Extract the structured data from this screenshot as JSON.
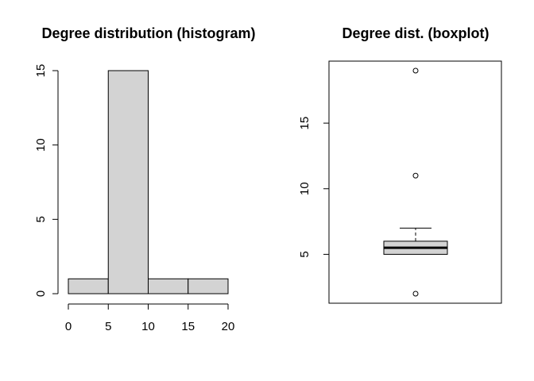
{
  "chart_data": [
    {
      "type": "bar",
      "title": "Degree distribution (histogram)",
      "xlabel": "",
      "ylabel": "",
      "bins": [
        [
          0,
          5
        ],
        [
          5,
          10
        ],
        [
          10,
          15
        ],
        [
          15,
          20
        ]
      ],
      "values": [
        1,
        15,
        1,
        1
      ],
      "xlim": [
        0,
        20
      ],
      "ylim": [
        0,
        15
      ],
      "x_ticks": [
        "0",
        "5",
        "10",
        "15",
        "20"
      ],
      "y_ticks": [
        "0",
        "5",
        "10",
        "15"
      ],
      "bar_color": "#d3d3d3",
      "grid": false
    },
    {
      "type": "boxplot",
      "title": "Degree dist. (boxplot)",
      "xlabel": "",
      "ylabel": "",
      "stats": {
        "whisker_low": 5,
        "q1": 5,
        "median": 5.5,
        "q3": 6,
        "whisker_high": 7
      },
      "outliers": [
        2,
        11,
        19
      ],
      "ylim": [
        2,
        19
      ],
      "y_ticks": [
        "5",
        "10",
        "15"
      ],
      "box_color": "#d3d3d3",
      "grid": false
    }
  ]
}
